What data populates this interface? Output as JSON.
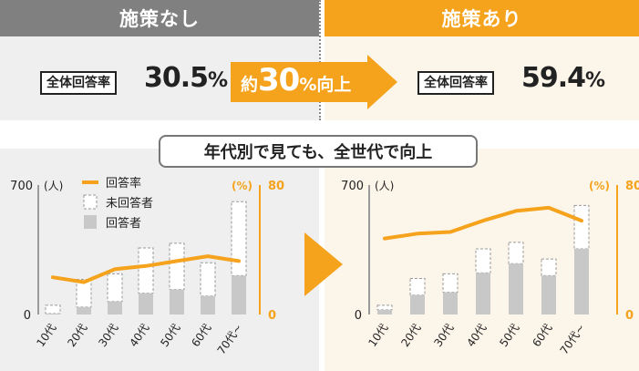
{
  "colors": {
    "orange": "#f5a21c",
    "gray_band": "#808080",
    "gray_bar": "#c8c8c8",
    "light_gray_bg": "#efefef",
    "cream_bg": "#fcf6ea"
  },
  "header": {
    "left": "施策なし",
    "right": "施策あり"
  },
  "summary": {
    "label": "全体回答率",
    "before_int": "30.5",
    "before_pct": "%",
    "after_int": "59.4",
    "after_pct": "%",
    "arrow_pre": "約",
    "arrow_num": "30",
    "arrow_post": "%向上"
  },
  "caption": "年代別で見ても、全世代で向上",
  "legend": {
    "line": "回答率",
    "dashed": "未回答者",
    "solid": "回答者"
  },
  "chart_data": [
    {
      "type": "bar",
      "title": "施策なし",
      "categories": [
        "10代",
        "20代",
        "30代",
        "40代",
        "50代",
        "60代",
        "70代~"
      ],
      "left_axis": {
        "label": "(人)",
        "range": [
          0,
          700
        ],
        "ticks": [
          "700",
          "0"
        ]
      },
      "right_axis": {
        "label": "(%)",
        "range": [
          0,
          80
        ],
        "ticks": [
          "80",
          "0"
        ]
      },
      "series": [
        {
          "name": "回答者",
          "kind": "bar_solid",
          "values": [
            5,
            40,
            70,
            115,
            135,
            100,
            210
          ]
        },
        {
          "name": "未回答者",
          "kind": "bar_dashed_stacked",
          "values": [
            45,
            150,
            150,
            245,
            250,
            180,
            400
          ]
        },
        {
          "name": "回答率",
          "kind": "line",
          "values": [
            23,
            20,
            28,
            30,
            33,
            36,
            33
          ]
        }
      ]
    },
    {
      "type": "bar",
      "title": "施策あり",
      "categories": [
        "10代",
        "20代",
        "30代",
        "40代",
        "50代",
        "60代",
        "70代~"
      ],
      "left_axis": {
        "label": "(人)",
        "range": [
          0,
          700
        ],
        "ticks": [
          "700",
          "0"
        ]
      },
      "right_axis": {
        "label": "(%)",
        "range": [
          0,
          80
        ],
        "ticks": [
          "80",
          "0"
        ]
      },
      "series": [
        {
          "name": "回答者",
          "kind": "bar_solid",
          "values": [
            25,
            105,
            120,
            225,
            275,
            210,
            355
          ]
        },
        {
          "name": "未回答者",
          "kind": "bar_dashed_stacked",
          "values": [
            25,
            90,
            100,
            130,
            115,
            90,
            235
          ]
        },
        {
          "name": "回答率",
          "kind": "line",
          "values": [
            47,
            50,
            51,
            58,
            64,
            66,
            58
          ]
        }
      ]
    }
  ]
}
